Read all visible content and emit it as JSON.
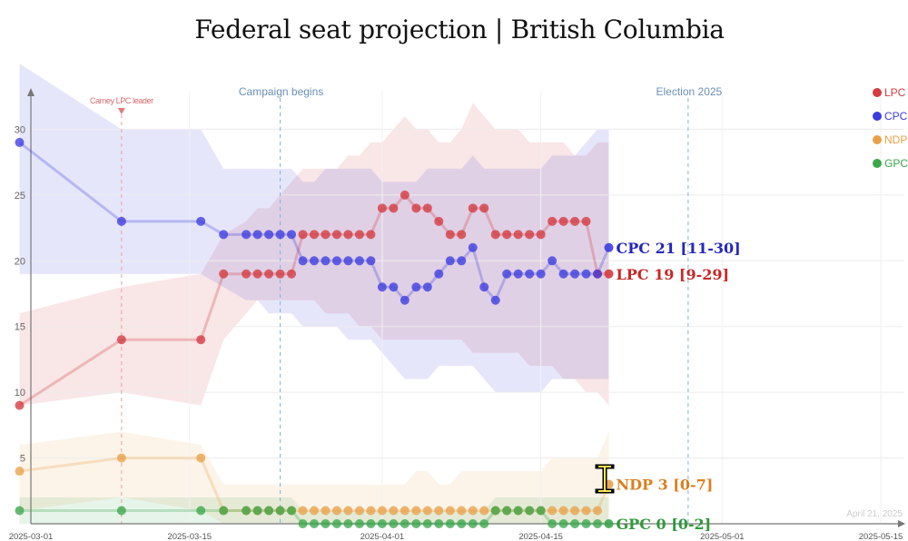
{
  "chart_data": {
    "type": "line",
    "title": "Federal seat projection | British Columbia",
    "ylim": [
      0,
      35
    ],
    "yticks": [
      5,
      10,
      15,
      20,
      25,
      30
    ],
    "x_range": [
      "2025-03-01",
      "2025-05-17"
    ],
    "xticks": [
      "2025-03-01",
      "2025-03-15",
      "2025-04-01",
      "2025-04-15",
      "2025-05-01",
      "2025-05-15"
    ],
    "events": [
      {
        "label": "Carney LPC leader",
        "date": "2025-03-09"
      },
      {
        "label": "Campaign begins",
        "date": "2025-03-23"
      },
      {
        "label": "Election 2025",
        "date": "2025-04-28"
      }
    ],
    "as_of": "April 21, 2025",
    "dates": [
      "2025-02-28",
      "2025-03-09",
      "2025-03-16",
      "2025-03-18",
      "2025-03-20",
      "2025-03-21",
      "2025-03-22",
      "2025-03-23",
      "2025-03-24",
      "2025-03-25",
      "2025-03-26",
      "2025-03-27",
      "2025-03-28",
      "2025-03-29",
      "2025-03-30",
      "2025-03-31",
      "2025-04-01",
      "2025-04-02",
      "2025-04-03",
      "2025-04-04",
      "2025-04-05",
      "2025-04-06",
      "2025-04-07",
      "2025-04-08",
      "2025-04-09",
      "2025-04-10",
      "2025-04-11",
      "2025-04-12",
      "2025-04-13",
      "2025-04-14",
      "2025-04-15",
      "2025-04-16",
      "2025-04-17",
      "2025-04-18",
      "2025-04-19",
      "2025-04-20",
      "2025-04-21"
    ],
    "series": [
      {
        "name": "LPC",
        "color": "#d43a3f",
        "values": [
          9,
          14,
          14,
          19,
          19,
          19,
          19,
          19,
          19,
          22,
          22,
          22,
          22,
          22,
          22,
          22,
          24,
          24,
          25,
          24,
          24,
          23,
          22,
          22,
          24,
          24,
          22,
          22,
          22,
          22,
          22,
          23,
          23,
          23,
          23,
          19,
          19
        ],
        "lower": [
          9,
          10,
          9,
          14,
          16,
          17,
          17,
          17,
          17,
          17,
          17,
          16,
          16,
          16,
          15,
          15,
          14,
          14,
          14,
          14,
          14,
          14,
          14,
          14,
          13,
          13,
          13,
          13,
          13,
          12,
          12,
          12,
          11,
          11,
          10,
          10,
          9
        ],
        "upper": [
          16,
          18,
          19,
          22,
          23,
          24,
          24,
          25,
          26,
          27,
          27,
          27,
          27,
          28,
          28,
          29,
          29,
          30,
          31,
          30,
          30,
          29,
          29,
          30,
          32,
          31,
          30,
          30,
          30,
          29,
          29,
          29,
          29,
          28,
          28,
          29,
          29
        ],
        "end_label": "LPC 19 [9-29]"
      },
      {
        "name": "CPC",
        "color": "#3c3ce0",
        "values": [
          29,
          23,
          23,
          22,
          22,
          22,
          22,
          22,
          22,
          20,
          20,
          20,
          20,
          20,
          20,
          20,
          18,
          18,
          17,
          18,
          18,
          19,
          20,
          20,
          21,
          18,
          17,
          19,
          19,
          19,
          19,
          20,
          19,
          19,
          19,
          19,
          21
        ],
        "lower": [
          19,
          19,
          19,
          18,
          17,
          17,
          16,
          16,
          16,
          15,
          15,
          15,
          15,
          14,
          14,
          14,
          13,
          12,
          11,
          11,
          11,
          12,
          12,
          12,
          12,
          11,
          10,
          10,
          10,
          10,
          10,
          11,
          11,
          11,
          11,
          11,
          11
        ],
        "upper": [
          35,
          30,
          30,
          27,
          27,
          27,
          27,
          27,
          27,
          26,
          26,
          27,
          27,
          27,
          27,
          27,
          26,
          26,
          26,
          26,
          27,
          27,
          27,
          27,
          28,
          27,
          27,
          27,
          27,
          27,
          27,
          28,
          28,
          28,
          29,
          30,
          30
        ],
        "end_label": "CPC 21 [11-30]"
      },
      {
        "name": "NDP",
        "color": "#e8a14a",
        "values": [
          4,
          5,
          5,
          1,
          1,
          1,
          1,
          1,
          1,
          1,
          1,
          1,
          1,
          1,
          1,
          1,
          1,
          1,
          1,
          1,
          1,
          1,
          1,
          1,
          1,
          1,
          1,
          1,
          1,
          1,
          1,
          1,
          1,
          1,
          1,
          1,
          3
        ],
        "lower": [
          1,
          2,
          1,
          0,
          0,
          0,
          0,
          0,
          0,
          0,
          0,
          0,
          0,
          0,
          0,
          0,
          0,
          0,
          0,
          0,
          0,
          0,
          0,
          0,
          0,
          0,
          0,
          0,
          0,
          0,
          0,
          0,
          0,
          0,
          0,
          0,
          0
        ],
        "upper": [
          6,
          7,
          6,
          3,
          3,
          3,
          3,
          3,
          3,
          3,
          3,
          3,
          3,
          3,
          3,
          3,
          3,
          3,
          3,
          4,
          4,
          3,
          3,
          4,
          4,
          4,
          4,
          4,
          4,
          4,
          4,
          5,
          5,
          5,
          5,
          5,
          7
        ],
        "end_label": "NDP 3 [0-7]"
      },
      {
        "name": "GPC",
        "color": "#3ba64b",
        "values": [
          1,
          1,
          1,
          1,
          1,
          1,
          1,
          1,
          1,
          0,
          0,
          0,
          0,
          0,
          0,
          0,
          0,
          0,
          0,
          0,
          0,
          0,
          0,
          0,
          0,
          0,
          1,
          1,
          1,
          1,
          1,
          0,
          0,
          0,
          0,
          0,
          0
        ],
        "lower": [
          0,
          0,
          0,
          0,
          0,
          0,
          0,
          0,
          0,
          0,
          0,
          0,
          0,
          0,
          0,
          0,
          0,
          0,
          0,
          0,
          0,
          0,
          0,
          0,
          0,
          0,
          0,
          0,
          0,
          0,
          0,
          0,
          0,
          0,
          0,
          0,
          0
        ],
        "upper": [
          2,
          2,
          2,
          2,
          2,
          2,
          2,
          2,
          2,
          1,
          1,
          1,
          1,
          1,
          1,
          1,
          1,
          1,
          1,
          1,
          1,
          1,
          1,
          1,
          1,
          1,
          2,
          2,
          2,
          2,
          2,
          2,
          2,
          2,
          2,
          2,
          2
        ],
        "end_label": "GPC 0 [0-2]"
      }
    ],
    "legend": [
      "LPC",
      "CPC",
      "NDP",
      "GPC"
    ],
    "legend_position": "top-right"
  }
}
